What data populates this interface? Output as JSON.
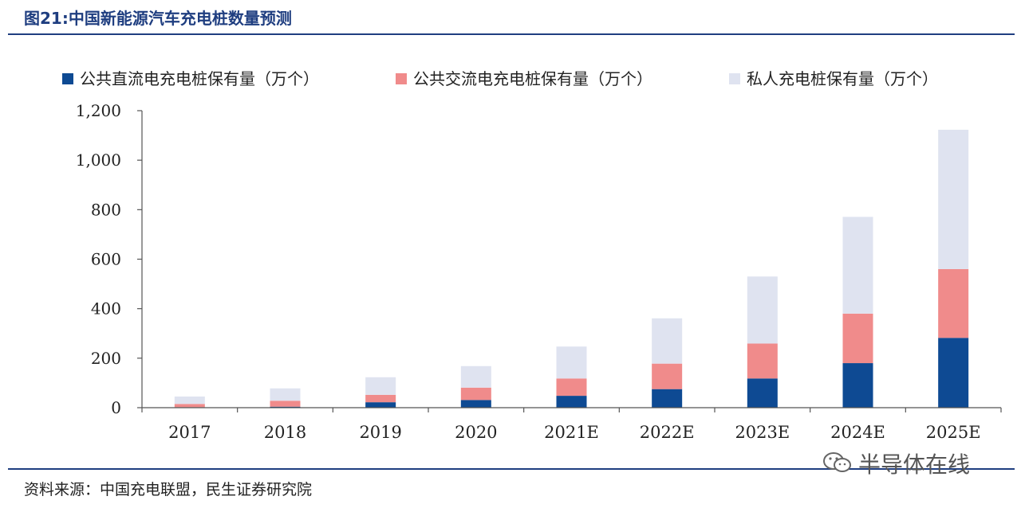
{
  "figure": {
    "title": "图21:中国新能源汽车充电桩数量预测",
    "source": "资料来源：中国充电联盟，民生证券研究院",
    "watermark_text": "半导体在线",
    "watermark_icon": "wechat-icon"
  },
  "colors": {
    "title": "#1f3e80",
    "dc": "#0e4a93",
    "ac": "#f08b8b",
    "private": "#dfe3f0"
  },
  "chart_data": {
    "type": "bar",
    "stacked": true,
    "categories": [
      "2017",
      "2018",
      "2019",
      "2020",
      "2021E",
      "2022E",
      "2023E",
      "2024E",
      "2025E"
    ],
    "series": [
      {
        "name": "公共直流电充电桩保有量（万个）",
        "values": [
          2,
          4,
          22,
          31,
          48,
          75,
          118,
          180,
          282
        ],
        "color": "#0e4a93"
      },
      {
        "name": "公共交流电充电桩保有量（万个）",
        "values": [
          13,
          24,
          30,
          50,
          70,
          103,
          141,
          200,
          278
        ],
        "color": "#f08b8b"
      },
      {
        "name": "私人充电桩保有量（万个）",
        "values": [
          30,
          50,
          71,
          87,
          129,
          183,
          271,
          391,
          563
        ],
        "color": "#dfe3f0"
      }
    ],
    "yticks": [
      0,
      200,
      400,
      600,
      800,
      1000,
      1200
    ],
    "ytick_labels": [
      "0",
      "200",
      "400",
      "600",
      "800",
      "1,000",
      "1,200"
    ],
    "ylim": [
      0,
      1200
    ],
    "xlabel": "",
    "ylabel": "",
    "legend_position": "top",
    "grid": false
  }
}
